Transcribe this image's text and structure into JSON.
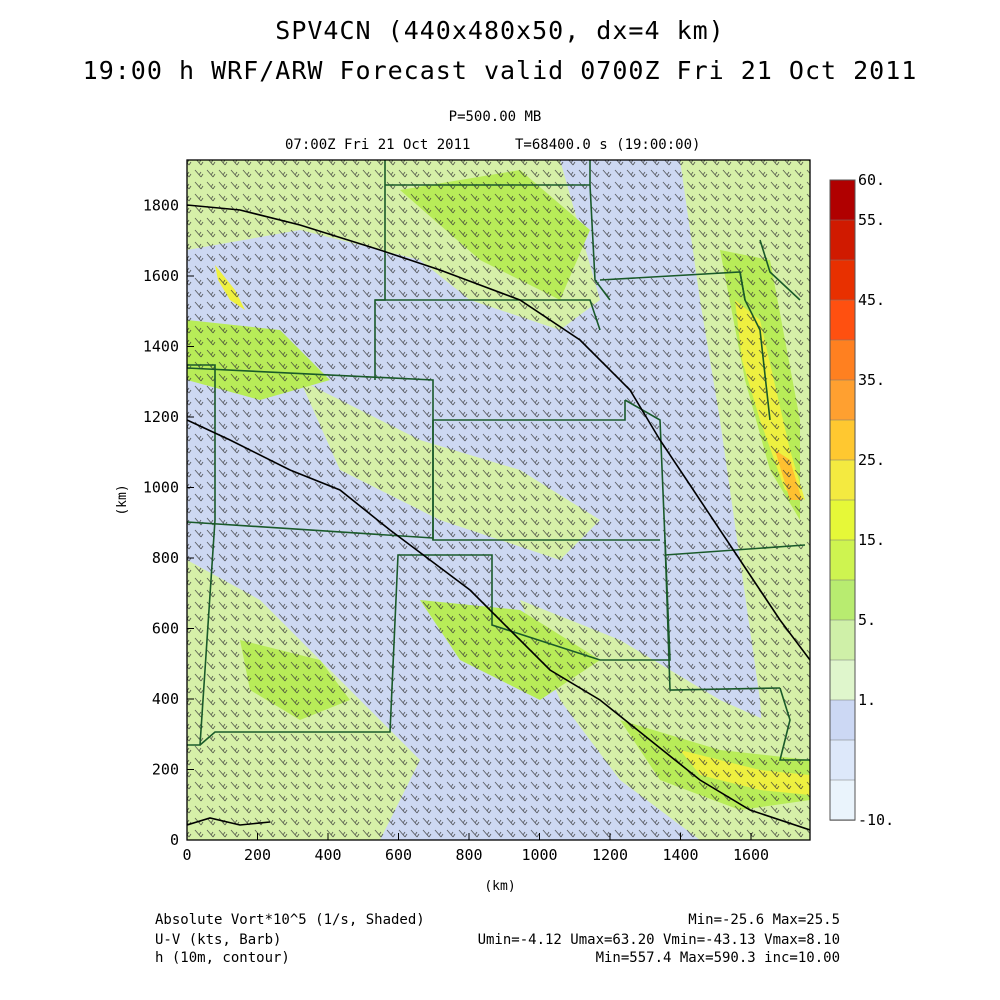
{
  "header": {
    "title_line1": "SPV4CN (440x480x50, dx=4 km)",
    "title_line2": "19:00 h WRF/ARW Forecast valid 0700Z Fri 21 Oct 2011",
    "level": "P=500.00 MB",
    "valid_time": "07:00Z Fri 21 Oct 2011",
    "time_step": "T=68400.0 s (19:00:00)"
  },
  "axes": {
    "x_ticks": [
      "0",
      "200",
      "400",
      "600",
      "800",
      "1000",
      "1200",
      "1400",
      "1600"
    ],
    "y_ticks": [
      "0",
      "200",
      "400",
      "600",
      "800",
      "1000",
      "1200",
      "1400",
      "1600",
      "1800"
    ],
    "x_label": "(km)",
    "y_label": "(km)"
  },
  "colorbar": {
    "labels": [
      "60.",
      "55.",
      "45.",
      "35.",
      "25.",
      "15.",
      "5.",
      "1.",
      "-10."
    ],
    "colors": [
      "#b00000",
      "#d01a00",
      "#e83000",
      "#ff5010",
      "#ff8020",
      "#ffa030",
      "#ffc830",
      "#f4ea40",
      "#e6f838",
      "#cef450",
      "#b8ec70",
      "#cff0a8",
      "#dff6cc",
      "#ccd8f4",
      "#dde8fa",
      "#eaf4fc"
    ]
  },
  "map_colors": {
    "background": "#cdd8f2",
    "light_green": "#d6f0a8",
    "green": "#b8ec58",
    "yellow": "#eef040",
    "orange": "#ffc030",
    "state_border": "#1a5a2a",
    "contour": "#000000"
  },
  "footer": {
    "field1": "Absolute Vort*10^5 (1/s, Shaded)",
    "field1_stats": "Min=-25.6 Max=25.5",
    "field2": "U-V (kts, Barb)",
    "field2_stats": "Umin=-4.12 Umax=63.20 Vmin=-43.13 Vmax=8.10",
    "field3": "h (10m, contour)",
    "field3_stats": "Min=557.4 Max=590.3 inc=10.00"
  }
}
